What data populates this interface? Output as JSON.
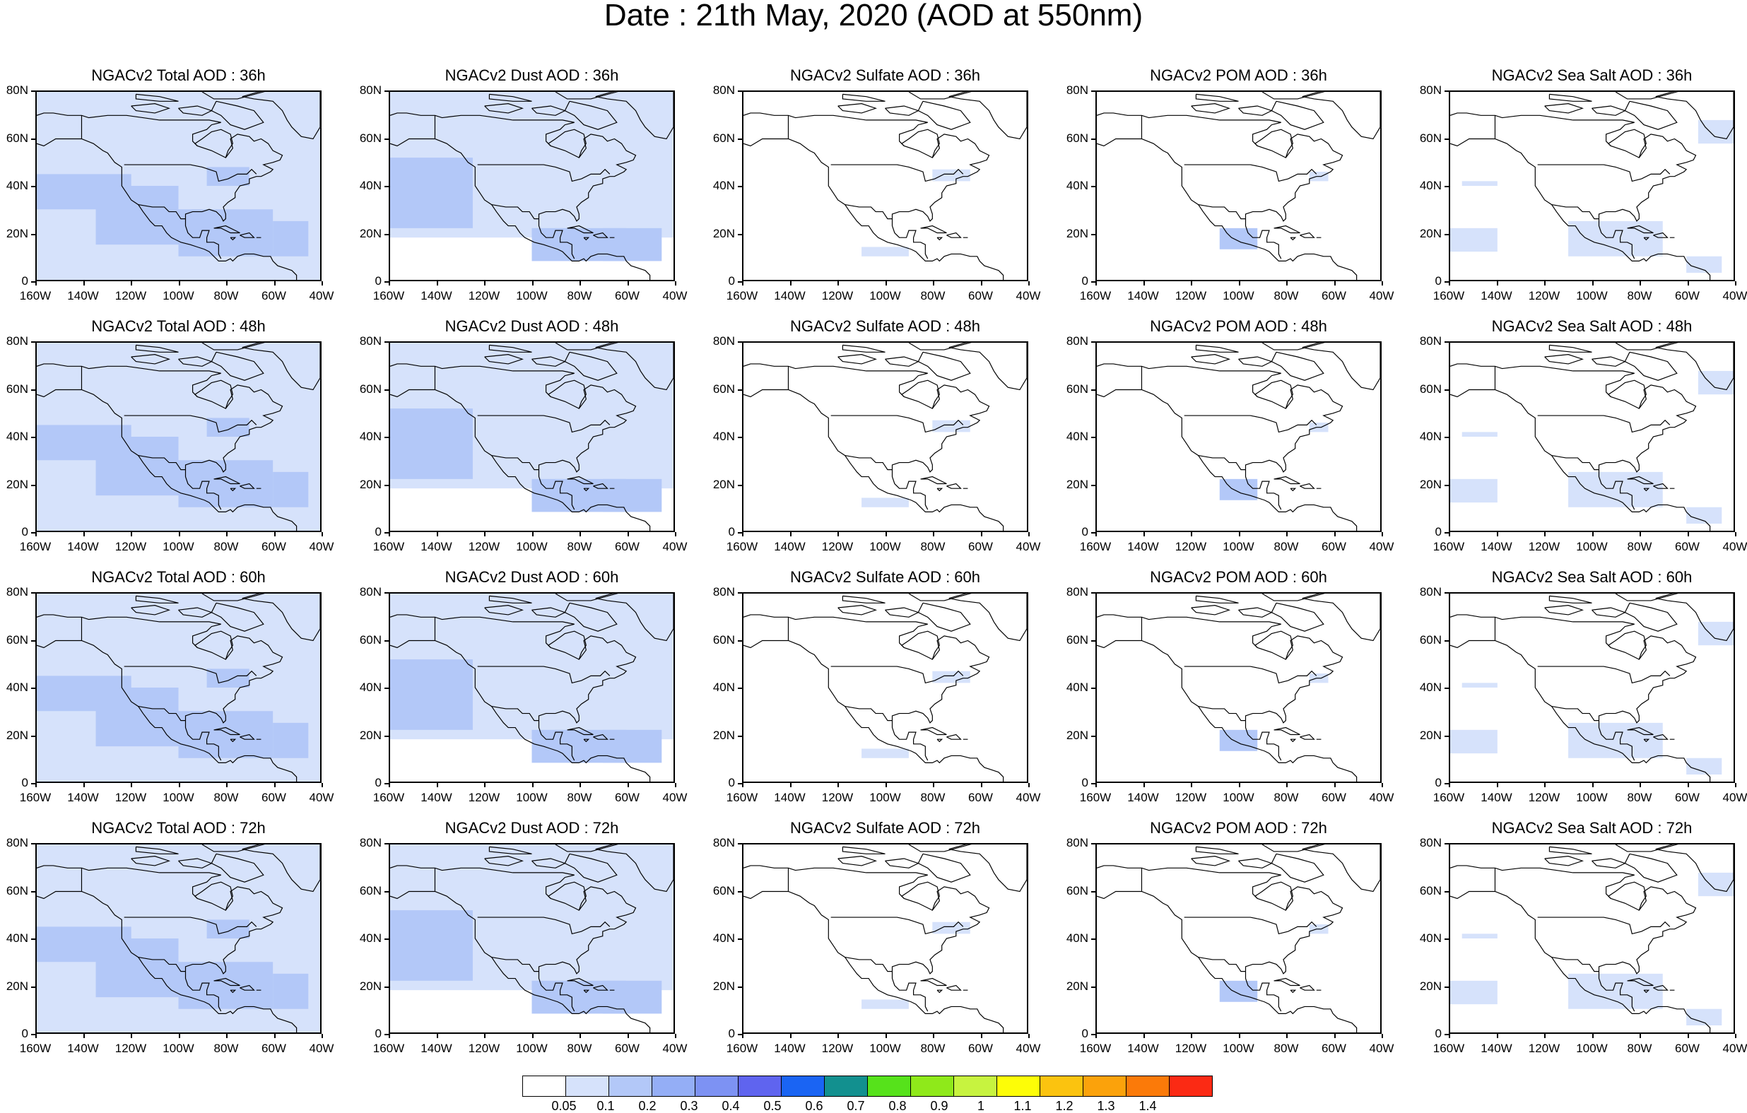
{
  "title": "Date : 21th May, 2020 (AOD at 550nm)",
  "lat_labels": [
    "80N",
    "60N",
    "40N",
    "20N",
    "0"
  ],
  "lon_labels": [
    "160W",
    "140W",
    "120W",
    "100W",
    "80W",
    "60W",
    "40W"
  ],
  "panels": [
    [
      "NGACv2 Total AOD : 36h",
      "NGACv2 Dust AOD : 36h",
      "NGACv2 Sulfate AOD : 36h",
      "NGACv2 POM AOD : 36h",
      "NGACv2 Sea Salt AOD : 36h"
    ],
    [
      "NGACv2 Total AOD : 48h",
      "NGACv2 Dust AOD : 48h",
      "NGACv2 Sulfate AOD : 48h",
      "NGACv2 POM AOD : 48h",
      "NGACv2 Sea Salt AOD : 48h"
    ],
    [
      "NGACv2 Total AOD : 60h",
      "NGACv2 Dust AOD : 60h",
      "NGACv2 Sulfate AOD : 60h",
      "NGACv2 POM AOD : 60h",
      "NGACv2 Sea Salt AOD : 60h"
    ],
    [
      "NGACv2 Total AOD : 72h",
      "NGACv2 Dust AOD : 72h",
      "NGACv2 Sulfate AOD : 72h",
      "NGACv2 POM AOD : 72h",
      "NGACv2 Sea Salt  AOD : 72h"
    ]
  ],
  "colorbar": {
    "colors": [
      "#ffffff",
      "#d6e2fb",
      "#b3c8f8",
      "#94aef6",
      "#7d92f3",
      "#5f64ef",
      "#1a64f3",
      "#12908f",
      "#56e21b",
      "#8fe91a",
      "#c7f33f",
      "#fdfd07",
      "#fbc30f",
      "#fba20b",
      "#fb7a09",
      "#fb2a14"
    ],
    "labels": [
      "0.05",
      "0.1",
      "0.2",
      "0.3",
      "0.4",
      "0.5",
      "0.6",
      "0.7",
      "0.8",
      "0.9",
      "1",
      "1.1",
      "1.2",
      "1.3",
      "1.4"
    ]
  }
}
